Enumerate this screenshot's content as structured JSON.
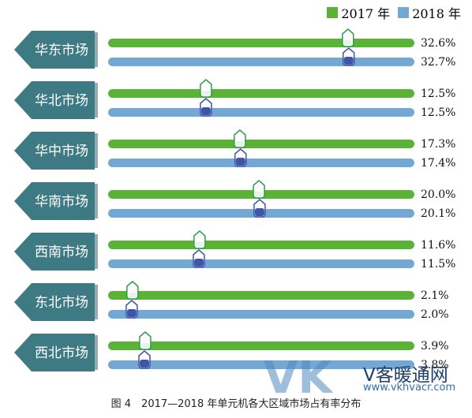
{
  "legend": {
    "items": [
      {
        "label": "2017 年",
        "color": "#5ab337"
      },
      {
        "label": "2018 年",
        "color": "#72a8d3"
      }
    ]
  },
  "caption": "图 4　2017—2018 年单元机各大区域市场占有率分布",
  "watermark": {
    "logo": "VK",
    "brand": "V客暖通网",
    "url": "www.vkhvacr.com"
  },
  "colors": {
    "label_bg": "#3d7a83",
    "bar_2017": "#5ab337",
    "bar_2018": "#72a8d3",
    "marker_2017": "#2f9e4b",
    "marker_2018": "#3f55a8"
  },
  "chart_data": {
    "type": "bar",
    "orientation": "horizontal",
    "categories": [
      "华东市场",
      "华北市场",
      "华中市场",
      "华南市场",
      "西南市场",
      "东北市场",
      "西北市场"
    ],
    "series": [
      {
        "name": "2017 年",
        "values": [
          32.6,
          12.5,
          17.3,
          20.0,
          11.6,
          2.1,
          3.9
        ],
        "labels": [
          "32.6%",
          "12.5%",
          "17.3%",
          "20.0%",
          "11.6%",
          "2.1%",
          "3.9%"
        ]
      },
      {
        "name": "2018 年",
        "values": [
          32.7,
          12.5,
          17.4,
          20.1,
          11.5,
          2.0,
          3.8
        ],
        "labels": [
          "32.7%",
          "12.5%",
          "17.4%",
          "20.1%",
          "11.5%",
          "2.0%",
          "3.8%"
        ]
      }
    ],
    "xlim": [
      0,
      42
    ],
    "unit": "%",
    "legend_position": "top-right"
  }
}
